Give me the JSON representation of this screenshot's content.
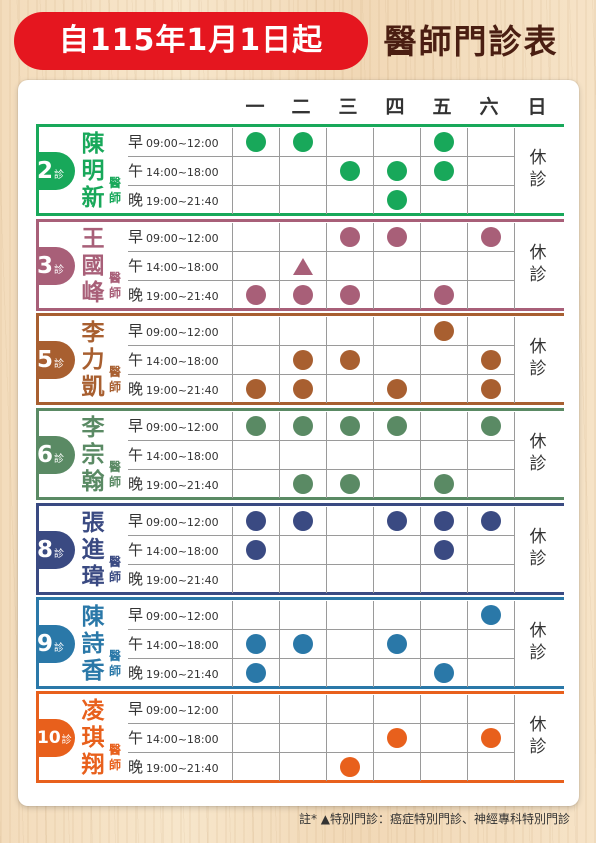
{
  "banner": "自115年1月1日起",
  "title": "醫師門診表",
  "days": [
    "一",
    "二",
    "三",
    "四",
    "五",
    "六",
    "日"
  ],
  "sessions": [
    {
      "prefix": "早",
      "time": "09:00~12:00"
    },
    {
      "prefix": "午",
      "time": "14:00~18:00"
    },
    {
      "prefix": "晚",
      "time": "19:00~21:40"
    }
  ],
  "doctor_title": "醫師",
  "clinic_suffix": "診",
  "sunday_label": "休診",
  "doctors": [
    {
      "clinic": "2",
      "name": "陳明新",
      "color": "#18a85a",
      "schedule": [
        [
          "o",
          "o",
          "",
          "",
          "o",
          ""
        ],
        [
          "",
          "",
          "o",
          "o",
          "o",
          ""
        ],
        [
          "",
          "",
          "",
          "o",
          "",
          ""
        ]
      ]
    },
    {
      "clinic": "3",
      "name": "王國峰",
      "color": "#a85f78",
      "schedule": [
        [
          "",
          "",
          "o",
          "o",
          "",
          "o"
        ],
        [
          "",
          "t",
          "",
          "",
          "",
          ""
        ],
        [
          "o",
          "o",
          "o",
          "",
          "o",
          ""
        ]
      ]
    },
    {
      "clinic": "5",
      "name": "李力凱",
      "color": "#a85f30",
      "schedule": [
        [
          "",
          "",
          "",
          "",
          "o",
          ""
        ],
        [
          "",
          "o",
          "o",
          "",
          "",
          "o"
        ],
        [
          "o",
          "o",
          "",
          "o",
          "",
          "o"
        ]
      ]
    },
    {
      "clinic": "6",
      "name": "李宗翰",
      "color": "#5a8a64",
      "schedule": [
        [
          "o",
          "o",
          "o",
          "o",
          "",
          "o"
        ],
        [
          "",
          "",
          "",
          "",
          "",
          ""
        ],
        [
          "",
          "o",
          "o",
          "",
          "o",
          ""
        ]
      ]
    },
    {
      "clinic": "8",
      "name": "張進瑋",
      "color": "#3a4a82",
      "schedule": [
        [
          "o",
          "o",
          "",
          "o",
          "o",
          "o"
        ],
        [
          "o",
          "",
          "",
          "",
          "o",
          ""
        ],
        [
          "",
          "",
          "",
          "",
          "",
          ""
        ]
      ]
    },
    {
      "clinic": "9",
      "name": "陳詩香",
      "color": "#2a78a8",
      "schedule": [
        [
          "",
          "",
          "",
          "",
          "",
          "o"
        ],
        [
          "o",
          "o",
          "",
          "o",
          "",
          ""
        ],
        [
          "o",
          "",
          "",
          "",
          "o",
          ""
        ]
      ]
    },
    {
      "clinic": "10",
      "name": "凌琪翔",
      "color": "#e8601c",
      "schedule": [
        [
          "",
          "",
          "",
          "",
          "",
          ""
        ],
        [
          "",
          "",
          "",
          "o",
          "",
          "o"
        ],
        [
          "",
          "",
          "o",
          "",
          "",
          ""
        ]
      ]
    }
  ],
  "note": "註* ▲特別門診：癌症特別門診、神經專科特別門診"
}
